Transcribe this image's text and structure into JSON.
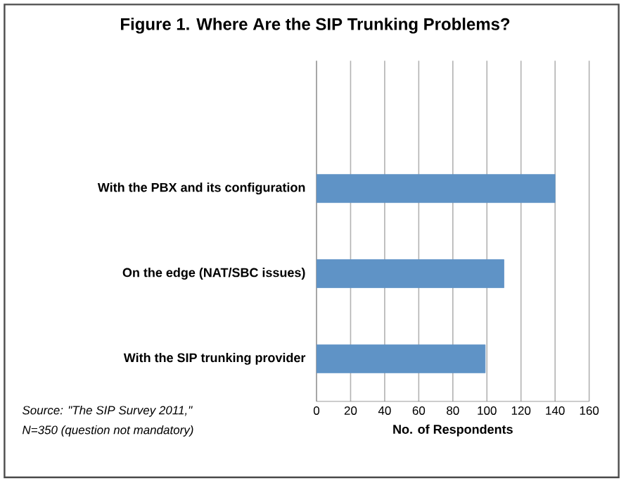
{
  "chart_data": {
    "type": "bar",
    "orientation": "horizontal",
    "title": "Figure 1.  Where Are the SIP Trunking Problems?",
    "categories": [
      null,
      "With the PBX and its configuration",
      "On the edge (NAT/SBC issues)",
      "With the SIP trunking provider"
    ],
    "values": [
      null,
      140,
      110,
      99
    ],
    "color": "#5f93c6",
    "xlim": [
      0,
      160
    ],
    "xticks": [
      0,
      20,
      40,
      60,
      80,
      100,
      120,
      140,
      160
    ],
    "grid": "x",
    "xlabel": "No. of Respondents",
    "annotations": [
      "Source: \"The SIP Survey 2011,\"",
      "N=350 (question not mandatory)"
    ]
  }
}
